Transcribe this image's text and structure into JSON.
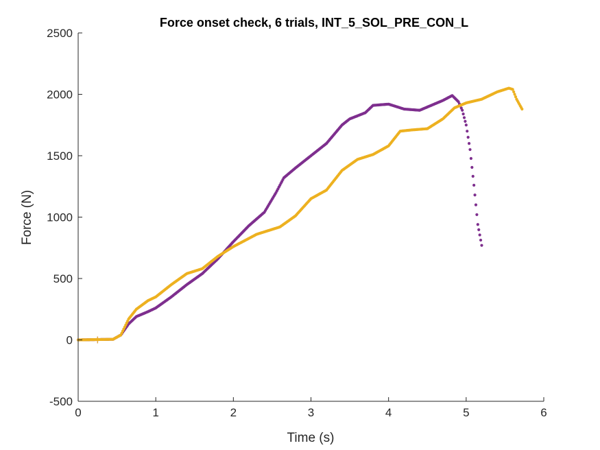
{
  "chart_data": {
    "type": "scatter",
    "title": "Force onset check, 6 trials, INT_5_SOL_PRE_CON_L",
    "xlabel": "Time (s)",
    "ylabel": "Force (N)",
    "xlim": [
      0,
      6
    ],
    "ylim": [
      -500,
      2500
    ],
    "xticks": [
      "0",
      "1",
      "2",
      "3",
      "4",
      "5",
      "6"
    ],
    "yticks": [
      "-500",
      "0",
      "500",
      "1000",
      "1500",
      "2000",
      "2500"
    ],
    "grid": false,
    "series": [
      {
        "color": "#7E2F8E",
        "onset": 0.25,
        "points": [
          [
            0,
            0
          ],
          [
            0.45,
            5
          ],
          [
            0.55,
            40
          ],
          [
            0.65,
            130
          ],
          [
            0.75,
            190
          ],
          [
            0.9,
            230
          ],
          [
            1.0,
            260
          ],
          [
            1.2,
            350
          ],
          [
            1.4,
            450
          ],
          [
            1.6,
            540
          ],
          [
            1.8,
            660
          ],
          [
            2.0,
            800
          ],
          [
            2.2,
            930
          ],
          [
            2.4,
            1040
          ],
          [
            2.55,
            1200
          ],
          [
            2.65,
            1320
          ],
          [
            2.8,
            1400
          ],
          [
            3.0,
            1500
          ],
          [
            3.2,
            1600
          ],
          [
            3.4,
            1750
          ],
          [
            3.5,
            1800
          ],
          [
            3.7,
            1850
          ],
          [
            3.8,
            1910
          ],
          [
            4.0,
            1920
          ],
          [
            4.2,
            1880
          ],
          [
            4.4,
            1870
          ],
          [
            4.55,
            1910
          ],
          [
            4.7,
            1950
          ],
          [
            4.82,
            1990
          ],
          [
            4.9,
            1940
          ],
          [
            4.95,
            1870
          ],
          [
            5.0,
            1750
          ],
          [
            5.05,
            1550
          ],
          [
            5.1,
            1260
          ],
          [
            5.15,
            940
          ],
          [
            5.2,
            770
          ]
        ]
      },
      {
        "color": "#EDB120",
        "onset": 0.25,
        "points": [
          [
            0,
            0
          ],
          [
            0.45,
            5
          ],
          [
            0.55,
            40
          ],
          [
            0.65,
            170
          ],
          [
            0.75,
            250
          ],
          [
            0.9,
            320
          ],
          [
            1.0,
            350
          ],
          [
            1.2,
            450
          ],
          [
            1.4,
            540
          ],
          [
            1.5,
            560
          ],
          [
            1.6,
            580
          ],
          [
            1.8,
            680
          ],
          [
            2.0,
            760
          ],
          [
            2.3,
            860
          ],
          [
            2.6,
            920
          ],
          [
            2.8,
            1010
          ],
          [
            3.0,
            1150
          ],
          [
            3.2,
            1220
          ],
          [
            3.4,
            1380
          ],
          [
            3.6,
            1470
          ],
          [
            3.8,
            1510
          ],
          [
            4.0,
            1580
          ],
          [
            4.15,
            1700
          ],
          [
            4.3,
            1710
          ],
          [
            4.5,
            1720
          ],
          [
            4.7,
            1800
          ],
          [
            4.85,
            1890
          ],
          [
            5.0,
            1930
          ],
          [
            5.2,
            1960
          ],
          [
            5.4,
            2020
          ],
          [
            5.55,
            2050
          ],
          [
            5.6,
            2040
          ],
          [
            5.65,
            1960
          ],
          [
            5.72,
            1880
          ]
        ]
      }
    ]
  }
}
